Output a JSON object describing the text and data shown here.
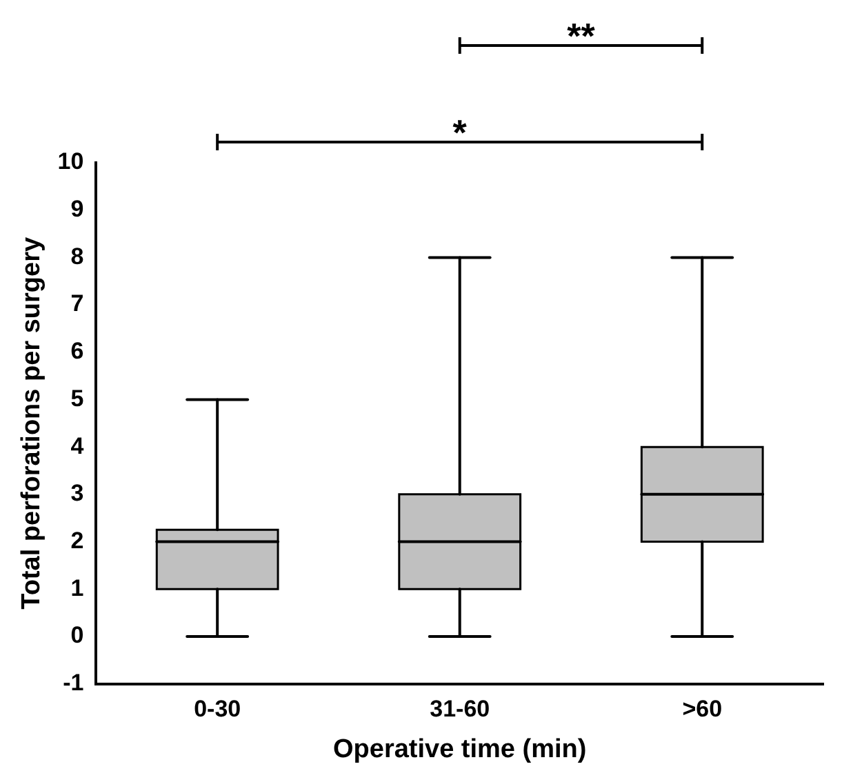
{
  "chart_data": {
    "type": "box",
    "xlabel": "Operative time (min)",
    "ylabel": "Total perforations per surgery",
    "categories": [
      "0-30",
      "31-60",
      ">60"
    ],
    "boxes": [
      {
        "low": 0,
        "q1": 1,
        "median": 2,
        "q3": 2.25,
        "high": 5
      },
      {
        "low": 0,
        "q1": 1,
        "median": 2,
        "q3": 3,
        "high": 8
      },
      {
        "low": 0,
        "q1": 2,
        "median": 3,
        "q3": 4,
        "high": 8
      }
    ],
    "color": "#c0c0c0",
    "ylim": [
      -1,
      10
    ],
    "yticks": [
      -1,
      0,
      1,
      2,
      3,
      4,
      5,
      6,
      7,
      8,
      9,
      10
    ],
    "grid": false,
    "legend": false,
    "annotations": [
      "**",
      "*"
    ]
  }
}
